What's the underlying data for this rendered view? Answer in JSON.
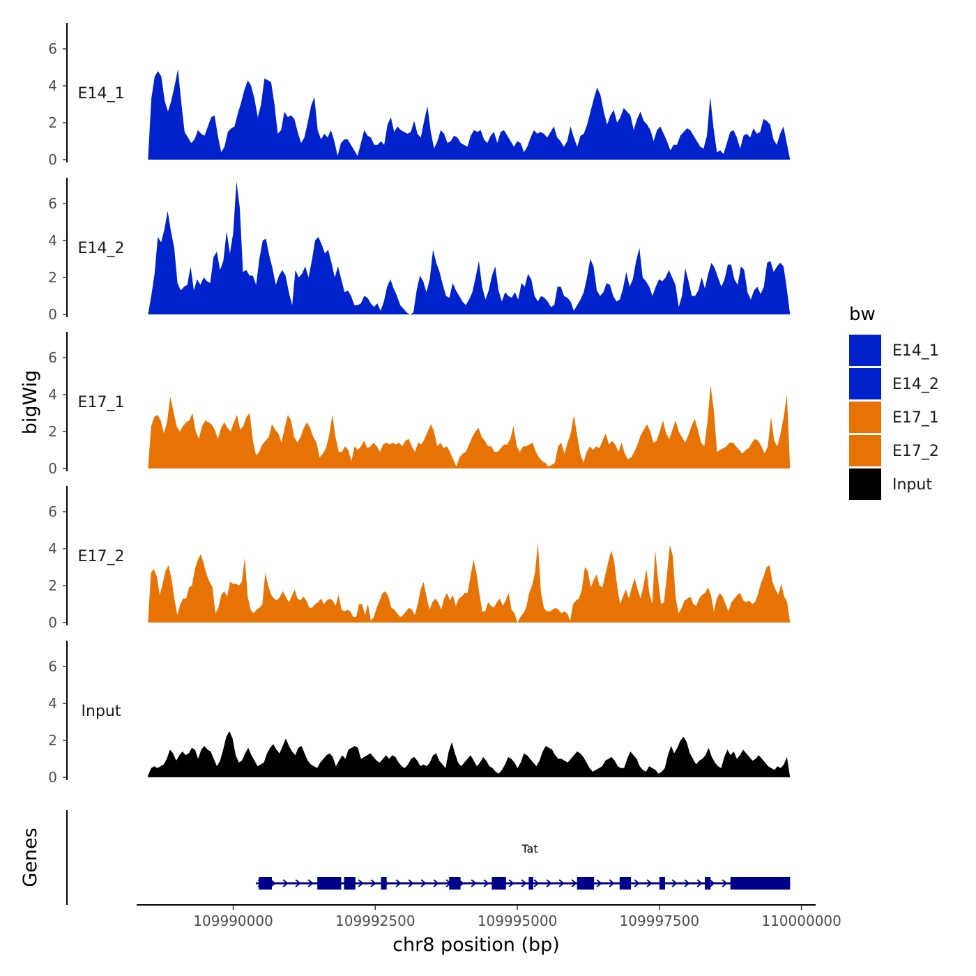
{
  "chart_data": {
    "type": "area",
    "subtype": "genome-coverage-tracks",
    "xlabel": "chr8 position (bp)",
    "ylabel": "bigWig",
    "genes_label": "Genes",
    "xlim": [
      109988300,
      110000250
    ],
    "x_range_data": [
      109988500,
      109999800
    ],
    "x_ticks": [
      109990000,
      109992500,
      109995000,
      109997500,
      110000000
    ],
    "x_tick_labels": [
      "109990000",
      "109992500",
      "109995000",
      "109997500",
      "110000000"
    ],
    "ylim": [
      0,
      7.4
    ],
    "y_ticks": [
      0,
      2,
      4,
      6
    ],
    "y_tick_labels": [
      "0",
      "2",
      "4",
      "6"
    ],
    "legend": {
      "title": "bw",
      "entries": [
        {
          "label": "E14_1",
          "color": "#0022CC"
        },
        {
          "label": "E14_2",
          "color": "#0022CC"
        },
        {
          "label": "E17_1",
          "color": "#E87305"
        },
        {
          "label": "E17_2",
          "color": "#E87305"
        },
        {
          "label": "Input",
          "color": "#000000"
        }
      ]
    },
    "tracks": [
      {
        "name": "E14_1",
        "color": "#0022CC",
        "values": [
          0,
          3.3,
          4.5,
          4.8,
          4.5,
          3.2,
          2.6,
          3.2,
          4.0,
          4.9,
          3.1,
          1.5,
          1.2,
          0.9,
          1.1,
          1.6,
          1.4,
          1.3,
          1.8,
          2.3,
          2.4,
          1.3,
          0.4,
          0.7,
          1.5,
          1.7,
          1.8,
          2.5,
          3.1,
          3.8,
          4.3,
          4.0,
          3.3,
          2.3,
          3.0,
          4.4,
          4.3,
          4.2,
          3.0,
          1.4,
          1.6,
          2.6,
          2.3,
          2.4,
          2.2,
          1.5,
          0.9,
          1.2,
          2.0,
          2.9,
          3.4,
          1.6,
          1.1,
          1.4,
          1.2,
          1.6,
          1.0,
          0.2,
          0.9,
          1.1,
          1.1,
          0.8,
          0.5,
          0.2,
          0.9,
          1.6,
          1.3,
          1.2,
          0.8,
          0.8,
          1.0,
          0.8,
          1.9,
          2.3,
          1.5,
          1.8,
          1.6,
          1.5,
          1.4,
          1.5,
          2.1,
          1.4,
          1.2,
          2.1,
          2.9,
          1.5,
          0.6,
          1.0,
          1.6,
          1.4,
          0.9,
          1.0,
          1.3,
          1.2,
          0.9,
          0.8,
          0.7,
          1.3,
          1.6,
          1.5,
          1.6,
          1.1,
          0.9,
          1.3,
          1.5,
          0.9,
          1.5,
          1.6,
          1.3,
          1.0,
          0.7,
          1.0,
          0.9,
          0.4,
          0.7,
          1.2,
          1.6,
          1.4,
          1.5,
          1.4,
          1.2,
          1.5,
          1.8,
          1.2,
          1.0,
          0.7,
          1.0,
          1.8,
          1.2,
          0.7,
          1.3,
          1.4,
          1.9,
          2.6,
          3.3,
          3.9,
          3.5,
          2.6,
          1.9,
          2.4,
          2.7,
          2.0,
          2.3,
          2.8,
          2.6,
          2.4,
          1.6,
          2.2,
          2.6,
          2.1,
          1.9,
          1.6,
          1.0,
          1.6,
          1.8,
          1.4,
          1.0,
          0.5,
          0.8,
          0.8,
          1.3,
          1.5,
          1.7,
          1.6,
          1.3,
          1.0,
          0.7,
          0.6,
          1.3,
          3.4,
          1.7,
          0.4,
          0.5,
          0.3,
          0.9,
          1.5,
          1.6,
          1.2,
          0.6,
          1.3,
          1.4,
          1.2,
          1.7,
          1.4,
          1.5,
          2.2,
          2.1,
          1.9,
          1.1,
          0.8,
          1.4,
          1.8,
          0.9,
          0
        ]
      },
      {
        "name": "E14_2",
        "color": "#0022CC",
        "values": [
          0,
          1.0,
          2.2,
          4.2,
          3.9,
          4.6,
          5.6,
          4.5,
          3.6,
          1.7,
          1.3,
          1.5,
          1.6,
          2.6,
          1.3,
          1.9,
          1.6,
          2.0,
          1.8,
          1.7,
          3.1,
          3.4,
          2.4,
          2.9,
          4.5,
          3.3,
          4.4,
          7.2,
          5.8,
          2.3,
          2.4,
          2.1,
          2.1,
          1.6,
          3.0,
          4.0,
          4.1,
          3.2,
          2.5,
          1.6,
          2.1,
          2.4,
          2.1,
          1.2,
          0.5,
          2.4,
          2.0,
          2.2,
          2.6,
          2.0,
          2.9,
          4.0,
          4.2,
          3.8,
          3.3,
          3.5,
          2.8,
          2.0,
          2.6,
          1.9,
          1.2,
          1.3,
          1.0,
          0.5,
          0.5,
          0.6,
          1.0,
          0.9,
          0.6,
          0.4,
          0.6,
          0.2,
          0.7,
          1.5,
          1.9,
          1.4,
          1.0,
          0.5,
          0.3,
          0.1,
          0.0,
          0.1,
          1.3,
          2.1,
          1.8,
          1.2,
          1.9,
          3.5,
          2.8,
          2.3,
          1.6,
          1.0,
          0.9,
          1.7,
          1.3,
          1.0,
          0.7,
          0.5,
          0.8,
          1.2,
          2.0,
          2.9,
          1.5,
          0.8,
          1.3,
          2.1,
          2.6,
          1.3,
          0.7,
          1.2,
          1.0,
          0.9,
          1.2,
          0.8,
          1.7,
          1.5,
          2.2,
          1.9,
          1.0,
          0.7,
          1.0,
          0.9,
          0.7,
          0.4,
          0.5,
          1.5,
          1.5,
          1.0,
          0.9,
          0.7,
          0.2,
          0.5,
          0.8,
          1.2,
          2.0,
          3.0,
          2.6,
          1.3,
          1.0,
          1.2,
          1.7,
          1.6,
          1.0,
          0.7,
          0.8,
          1.4,
          2.3,
          1.5,
          1.9,
          2.9,
          3.6,
          2.0,
          1.8,
          1.5,
          1.0,
          1.5,
          1.9,
          1.8,
          2.0,
          2.4,
          2.0,
          1.6,
          0.4,
          1.0,
          2.5,
          1.8,
          1.0,
          1.0,
          1.3,
          2.0,
          1.4,
          2.2,
          2.8,
          2.5,
          2.0,
          1.5,
          1.9,
          2.7,
          2.7,
          1.9,
          1.6,
          2.6,
          2.4,
          1.2,
          0.8,
          1.3,
          1.5,
          1.1,
          1.5,
          2.8,
          2.9,
          2.3,
          2.6,
          2.8,
          2.6,
          1.4,
          0
        ]
      },
      {
        "name": "E17_1",
        "color": "#E87305",
        "values": [
          0,
          2.3,
          2.8,
          2.9,
          2.6,
          1.9,
          2.5,
          3.9,
          3.1,
          2.3,
          2.0,
          2.3,
          2.5,
          2.6,
          3.0,
          2.0,
          1.6,
          2.3,
          2.6,
          2.5,
          2.4,
          2.1,
          1.6,
          2.2,
          2.5,
          2.2,
          2.0,
          2.5,
          2.9,
          2.1,
          2.3,
          2.8,
          3.0,
          1.5,
          0.7,
          0.9,
          1.3,
          1.5,
          1.7,
          2.4,
          2.1,
          1.9,
          1.4,
          2.2,
          2.9,
          2.6,
          1.7,
          1.4,
          1.7,
          2.2,
          2.5,
          2.2,
          1.7,
          1.4,
          0.6,
          0.8,
          1.1,
          1.8,
          2.9,
          1.7,
          0.9,
          0.9,
          1.2,
          1.0,
          0.4,
          1.2,
          1.0,
          1.2,
          1.5,
          1.1,
          1.2,
          1.4,
          1.2,
          0.9,
          1.3,
          1.4,
          1.3,
          1.4,
          1.3,
          1.4,
          1.2,
          1.5,
          1.6,
          1.2,
          0.9,
          1.4,
          1.3,
          1.6,
          2.0,
          2.4,
          2.0,
          1.2,
          1.4,
          1.1,
          1.2,
          0.9,
          0.5,
          0.1,
          0.6,
          0.8,
          0.9,
          1.3,
          1.7,
          2.0,
          2.2,
          1.7,
          1.5,
          1.2,
          1.2,
          0.9,
          0.9,
          1.1,
          1.3,
          1.3,
          1.6,
          2.3,
          1.2,
          0.9,
          1.2,
          1.2,
          1.3,
          1.4,
          0.9,
          0.6,
          0.4,
          0.3,
          0.1,
          0.2,
          0.3,
          1.2,
          1.4,
          0.8,
          1.4,
          1.9,
          2.9,
          1.8,
          0.8,
          0.3,
          0.9,
          1.2,
          1.0,
          1.2,
          1.1,
          1.5,
          1.9,
          1.3,
          1.5,
          1.3,
          0.9,
          1.4,
          0.8,
          0.5,
          0.6,
          0.9,
          1.3,
          1.8,
          2.1,
          2.4,
          2.0,
          1.4,
          1.5,
          2.0,
          2.6,
          1.9,
          1.6,
          2.1,
          2.6,
          2.0,
          1.7,
          1.4,
          1.8,
          2.3,
          2.7,
          2.1,
          1.4,
          1.2,
          2.5,
          4.5,
          3.2,
          0.9,
          1.0,
          1.1,
          1.2,
          1.4,
          1.4,
          1.2,
          1.0,
          0.8,
          1.0,
          1.1,
          1.4,
          1.6,
          1.5,
          1.2,
          0.8,
          1.2,
          2.8,
          1.5,
          1.2,
          1.9,
          2.8,
          4.0,
          0
        ]
      },
      {
        "name": "E17_2",
        "color": "#E87305",
        "values": [
          0,
          2.7,
          2.9,
          2.5,
          1.5,
          2.1,
          2.8,
          3.1,
          2.4,
          1.3,
          0.4,
          1.0,
          1.3,
          1.3,
          1.9,
          2.0,
          2.9,
          3.4,
          3.7,
          3.2,
          2.6,
          2.2,
          1.9,
          0.5,
          0.8,
          1.5,
          1.7,
          1.4,
          2.2,
          2.1,
          2.1,
          2.0,
          2.2,
          3.5,
          1.4,
          0.7,
          0.5,
          0.7,
          0.8,
          1.0,
          2.7,
          2.0,
          1.5,
          1.3,
          1.2,
          1.4,
          1.7,
          1.4,
          1.1,
          1.4,
          1.8,
          1.3,
          1.2,
          1.4,
          1.2,
          0.8,
          0.8,
          1.0,
          1.1,
          1.3,
          1.0,
          1.2,
          1.3,
          1.2,
          0.9,
          1.5,
          0.7,
          0.6,
          0.7,
          0.6,
          0.3,
          0.3,
          1.0,
          1.0,
          0.4,
          1.0,
          0.1,
          0.3,
          0.8,
          1.2,
          1.6,
          1.7,
          1.4,
          0.8,
          0.7,
          0.5,
          0.3,
          0.4,
          0.6,
          0.8,
          0.7,
          0.4,
          1.0,
          1.8,
          2.2,
          1.4,
          0.7,
          1.1,
          1.3,
          1.1,
          0.7,
          1.3,
          1.6,
          1.2,
          1.5,
          0.9,
          1.3,
          1.4,
          1.6,
          1.6,
          2.5,
          3.4,
          2.7,
          1.6,
          0.6,
          0.6,
          1.1,
          0.9,
          0.8,
          1.1,
          1.3,
          0.9,
          1.2,
          1.6,
          0.7,
          0.5,
          0.0,
          0.3,
          0.5,
          0.8,
          1.6,
          2.0,
          2.7,
          4.3,
          1.7,
          0.8,
          0.6,
          0.6,
          0.7,
          0.8,
          0.7,
          0.5,
          0.6,
          0.5,
          0.1,
          1.0,
          1.2,
          1.3,
          1.8,
          3.0,
          2.8,
          1.9,
          2.3,
          2.6,
          2.0,
          1.9,
          2.6,
          3.3,
          3.9,
          3.3,
          2.0,
          1.0,
          1.4,
          1.8,
          1.3,
          1.9,
          2.4,
          1.8,
          1.3,
          2.0,
          2.9,
          1.6,
          1.0,
          3.9,
          2.3,
          1.0,
          1.1,
          2.6,
          4.2,
          3.6,
          1.3,
          0.5,
          0.8,
          1.2,
          1.3,
          1.4,
          1.0,
          0.9,
          1.3,
          1.5,
          1.6,
          1.9,
          1.5,
          0.6,
          1.3,
          1.6,
          1.4,
          1.0,
          0.6,
          1.1,
          1.3,
          1.5,
          1.6,
          1.2,
          1.1,
          1.2,
          1.0,
          1.1,
          1.5,
          2.1,
          2.5,
          3.0,
          3.1,
          2.2,
          1.8,
          1.5,
          2.1,
          1.4,
          1.1,
          0
        ]
      },
      {
        "name": "Input",
        "color": "#000000",
        "values": [
          0.1,
          0.5,
          0.6,
          0.5,
          0.6,
          0.7,
          1.0,
          1.5,
          1.3,
          0.9,
          1.2,
          1.4,
          1.2,
          1.3,
          1.6,
          1.5,
          1.0,
          1.5,
          1.7,
          1.5,
          1.4,
          1.0,
          0.6,
          0.9,
          1.5,
          2.2,
          2.5,
          2.1,
          1.2,
          0.8,
          0.9,
          1.3,
          1.6,
          1.2,
          0.9,
          0.6,
          0.7,
          0.8,
          1.3,
          1.6,
          1.8,
          1.5,
          1.3,
          1.7,
          2.1,
          1.7,
          1.4,
          1.2,
          1.6,
          1.7,
          1.3,
          0.9,
          0.7,
          0.6,
          0.5,
          0.8,
          1.0,
          1.2,
          1.3,
          1.1,
          0.6,
          0.9,
          1.2,
          1.0,
          1.5,
          1.6,
          1.7,
          1.6,
          1.0,
          1.1,
          1.2,
          1.3,
          1.1,
          0.9,
          0.8,
          1.0,
          1.2,
          1.0,
          1.2,
          1.1,
          0.8,
          0.6,
          0.5,
          0.7,
          1.0,
          1.1,
          0.9,
          0.6,
          0.7,
          0.6,
          0.8,
          1.2,
          1.3,
          0.9,
          0.7,
          0.5,
          1.4,
          1.9,
          1.3,
          0.8,
          0.6,
          0.8,
          1.0,
          1.2,
          0.9,
          0.6,
          0.8,
          1.1,
          0.9,
          0.6,
          0.5,
          0.3,
          0.2,
          0.4,
          0.7,
          1.1,
          1.0,
          0.8,
          0.5,
          0.8,
          1.3,
          1.2,
          1.0,
          0.8,
          0.6,
          0.9,
          1.4,
          1.7,
          1.6,
          1.5,
          1.2,
          1.0,
          1.0,
          0.9,
          0.8,
          1.0,
          1.2,
          1.4,
          1.3,
          1.1,
          0.8,
          0.5,
          0.3,
          0.4,
          0.5,
          0.6,
          0.9,
          1.0,
          1.1,
          0.9,
          0.6,
          0.5,
          0.5,
          1.0,
          1.4,
          1.2,
          1.0,
          0.6,
          0.4,
          0.3,
          0.6,
          0.5,
          0.4,
          0.2,
          0.3,
          0.5,
          1.2,
          1.7,
          1.3,
          1.6,
          2.0,
          2.2,
          1.9,
          1.3,
          1.0,
          0.7,
          0.9,
          1.0,
          1.2,
          1.6,
          1.1,
          0.8,
          0.6,
          0.5,
          1.1,
          1.5,
          1.2,
          1.4,
          1.0,
          1.2,
          1.5,
          1.3,
          1.1,
          0.9,
          1.0,
          1.2,
          1.0,
          0.8,
          0.6,
          0.5,
          0.4,
          0.6,
          0.5,
          0.7,
          1.1,
          0
        ]
      }
    ],
    "gene": {
      "name": "Tat",
      "color": "#00008B",
      "strand": "+",
      "start": 109990400,
      "end": 109999800,
      "exons": [
        [
          109990450,
          109990680
        ],
        [
          109991480,
          109991900
        ],
        [
          109991950,
          109992150
        ],
        [
          109992600,
          109992700
        ],
        [
          109993800,
          109994000
        ],
        [
          109994550,
          109994800
        ],
        [
          109995200,
          109995280
        ],
        [
          109996050,
          109996350
        ],
        [
          109996800,
          109997000
        ],
        [
          109997500,
          109997600
        ],
        [
          109998300,
          109998400
        ],
        [
          109998750,
          109999800
        ]
      ]
    }
  }
}
